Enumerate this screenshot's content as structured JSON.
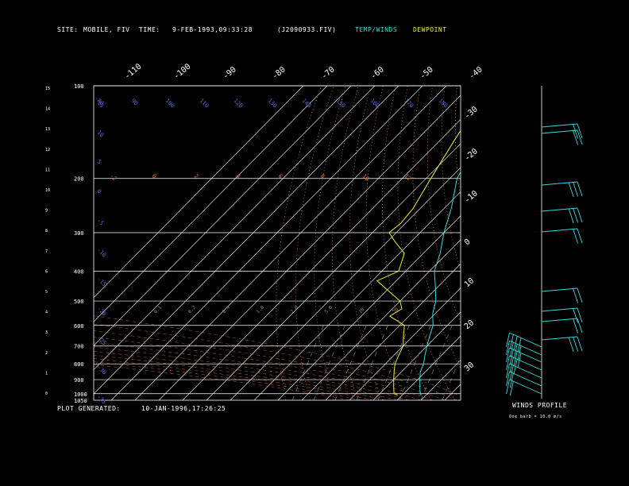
{
  "header": {
    "site_label": "SITE:",
    "site_value": "MOBILE, FIV",
    "time_label": "TIME:",
    "time_value": "9-FEB-1993,09:33:28",
    "file": "(J2090933.FIV)",
    "legend_temp": "TEMP/WINDS",
    "legend_dew": "DEWPOINT"
  },
  "footer": {
    "generated_label": "PLOT GENERATED:",
    "generated_value": "10-JAN-1996,17:26:25"
  },
  "winds": {
    "title": "WINDS PROFILE",
    "note": "One barb = 10.0 m/s"
  },
  "colors": {
    "temp": "#33dddd",
    "dew": "#eeee22",
    "isotherm": "#ffffff",
    "dry_adiabat": "#ee8833",
    "moist_adiabat": "#dd7733",
    "mixing": "#888888",
    "wind": "#33dddd",
    "grid": "#ffffff"
  },
  "chart_data": {
    "type": "line",
    "title": "",
    "pressure_levels": [
      100,
      200,
      300,
      400,
      500,
      600,
      700,
      800,
      900,
      1000,
      1050
    ],
    "height_ticks_km": [
      0,
      1,
      2,
      3,
      4,
      5,
      6,
      7,
      8,
      9,
      10,
      11,
      12,
      13,
      14,
      15
    ],
    "isotherm_top_labels": [
      "-110",
      "-100",
      "-90",
      "-80",
      "-70",
      "-60",
      "-50",
      "-40"
    ],
    "isotherm_right_labels": [
      "-30",
      "-20",
      "-10",
      "0",
      "10",
      "20",
      "30"
    ],
    "dry_adiabat_labels": [
      "80",
      "90",
      "100",
      "110",
      "120",
      "130",
      "140",
      "150",
      "160",
      "170",
      "180"
    ],
    "moist_labels": [
      "-2",
      "0",
      "2",
      "4",
      "6",
      "8",
      "10",
      "12",
      "14",
      "16",
      "18",
      "20"
    ],
    "mixing_labels": [
      "0.1",
      "0.2",
      "0.4",
      "1.0",
      "2.0",
      "5.0",
      "10",
      "20"
    ],
    "left_labels": [
      "15",
      "10",
      "5",
      "0",
      "-5",
      "-10",
      "-15",
      "-20",
      "-25",
      "-30",
      "-35"
    ],
    "series": [
      {
        "name": "TEMP/WINDS",
        "points": [
          {
            "p": 100,
            "t": -75
          },
          {
            "p": 150,
            "t": -64
          },
          {
            "p": 200,
            "t": -57
          },
          {
            "p": 250,
            "t": -47
          },
          {
            "p": 300,
            "t": -40
          },
          {
            "p": 350,
            "t": -33
          },
          {
            "p": 400,
            "t": -28
          },
          {
            "p": 450,
            "t": -21
          },
          {
            "p": 500,
            "t": -15
          },
          {
            "p": 550,
            "t": -11
          },
          {
            "p": 600,
            "t": -6
          },
          {
            "p": 650,
            "t": -3
          },
          {
            "p": 700,
            "t": 0
          },
          {
            "p": 750,
            "t": 3
          },
          {
            "p": 800,
            "t": 6
          },
          {
            "p": 850,
            "t": 8
          },
          {
            "p": 900,
            "t": 11
          },
          {
            "p": 950,
            "t": 14
          },
          {
            "p": 1000,
            "t": 17
          },
          {
            "p": 1010,
            "t": 18
          }
        ]
      },
      {
        "name": "DEWPOINT",
        "points": [
          {
            "p": 100,
            "t": -82
          },
          {
            "p": 150,
            "t": -74
          },
          {
            "p": 200,
            "t": -68
          },
          {
            "p": 250,
            "t": -63
          },
          {
            "p": 280,
            "t": -62
          },
          {
            "p": 300,
            "t": -63
          },
          {
            "p": 320,
            "t": -57
          },
          {
            "p": 350,
            "t": -48
          },
          {
            "p": 400,
            "t": -43
          },
          {
            "p": 430,
            "t": -48
          },
          {
            "p": 460,
            "t": -40
          },
          {
            "p": 500,
            "t": -30
          },
          {
            "p": 530,
            "t": -26
          },
          {
            "p": 560,
            "t": -28
          },
          {
            "p": 600,
            "t": -18
          },
          {
            "p": 650,
            "t": -14
          },
          {
            "p": 700,
            "t": -10
          },
          {
            "p": 750,
            "t": -8
          },
          {
            "p": 800,
            "t": -6
          },
          {
            "p": 850,
            "t": -3
          },
          {
            "p": 900,
            "t": 0
          },
          {
            "p": 950,
            "t": 3
          },
          {
            "p": 1000,
            "t": 6
          },
          {
            "p": 1010,
            "t": 8
          }
        ]
      }
    ],
    "winds_profile": [
      {
        "y": 160,
        "speed": 20
      },
      {
        "y": 168,
        "speed": 20
      },
      {
        "y": 233,
        "speed": 30
      },
      {
        "y": 266,
        "speed": 30
      },
      {
        "y": 292,
        "speed": 20
      },
      {
        "y": 367,
        "speed": 20
      },
      {
        "y": 392,
        "speed": 20
      },
      {
        "y": 405,
        "speed": 20
      },
      {
        "y": 428,
        "speed": 30
      },
      {
        "y": 437,
        "speed": 40
      },
      {
        "y": 447,
        "speed": 40
      },
      {
        "y": 456,
        "speed": 40
      },
      {
        "y": 466,
        "speed": 30
      },
      {
        "y": 476,
        "speed": 20
      },
      {
        "y": 486,
        "speed": 20
      },
      {
        "y": 496,
        "speed": 20
      }
    ]
  }
}
